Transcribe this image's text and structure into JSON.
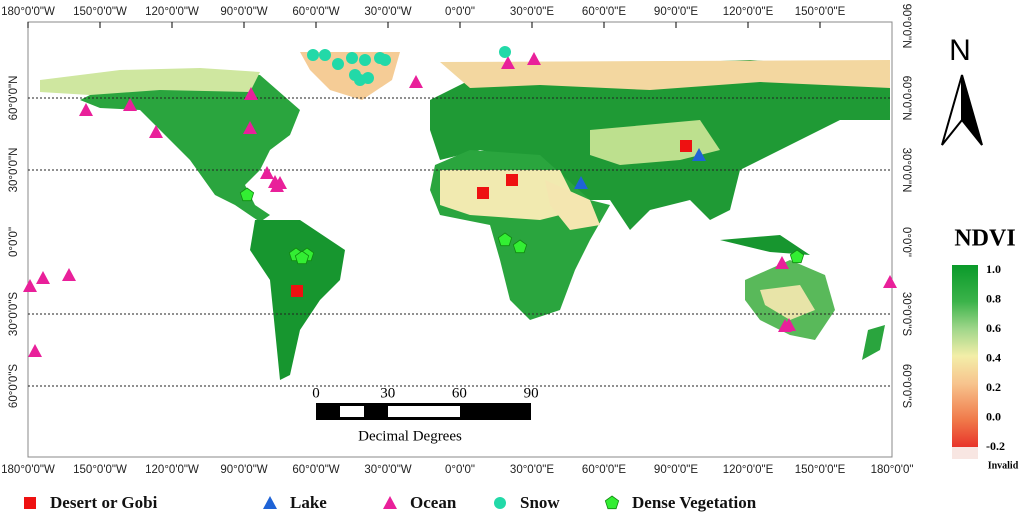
{
  "map": {
    "top_labels": [
      "180°0'0\"W",
      "150°0'0\"W",
      "120°0'0\"W",
      "90°0'0\"W",
      "60°0'0\"W",
      "30°0'0\"W",
      "0°0'0\"",
      "30°0'0\"E",
      "60°0'0\"E",
      "90°0'0\"E",
      "120°0'0\"E",
      "150°0'0\"E"
    ],
    "bottom_labels": [
      "180°0'0\"W",
      "150°0'0\"W",
      "120°0'0\"W",
      "90°0'0\"W",
      "60°0'0\"W",
      "30°0'0\"W",
      "0°0'0\"",
      "30°0'0\"E",
      "60°0'0\"E",
      "90°0'0\"E",
      "120°0'0\"E",
      "150°0'0\"E",
      "180°0'0\""
    ],
    "left_labels": [
      "60°0'0\"N",
      "30°0'0\"N",
      "0°0'0\"",
      "30°0'0\"S",
      "60°0'0\"S"
    ],
    "right_labels": [
      "90°0'0\"N",
      "60°0'0\"N",
      "30°0'0\"N",
      "0°0'0\"",
      "30°0'0\"S",
      "60°0'0\"S"
    ],
    "scale_bar": {
      "ticks": [
        "0",
        "30",
        "60",
        "90"
      ],
      "unit": "Decimal Degrees"
    },
    "north": "N",
    "colorbar": {
      "title": "NDVI",
      "ticks": [
        "1.0",
        "0.8",
        "0.6",
        "0.4",
        "0.2",
        "0.0",
        "-0.2"
      ],
      "invalid": "Invalid"
    },
    "legend": [
      "Desert or Gobi",
      "Lake",
      "Ocean",
      "Snow",
      "Dense Vegetation"
    ]
  }
}
